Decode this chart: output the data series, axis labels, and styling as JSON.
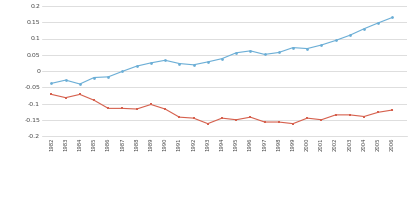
{
  "years": [
    1982,
    1983,
    1984,
    1985,
    1986,
    1987,
    1988,
    1989,
    1990,
    1991,
    1992,
    1993,
    1994,
    1995,
    1996,
    1997,
    1998,
    1999,
    2000,
    2001,
    2002,
    2003,
    2004,
    2005,
    2006
  ],
  "manufacturing": [
    -0.038,
    -0.028,
    -0.04,
    -0.02,
    -0.018,
    -0.001,
    0.015,
    0.025,
    0.033,
    0.023,
    0.019,
    0.028,
    0.038,
    0.056,
    0.062,
    0.051,
    0.057,
    0.072,
    0.069,
    0.08,
    0.094,
    0.11,
    0.13,
    0.148,
    0.165
  ],
  "non_manufacturing": [
    -0.072,
    -0.082,
    -0.072,
    -0.09,
    -0.115,
    -0.115,
    -0.117,
    -0.103,
    -0.117,
    -0.142,
    -0.145,
    -0.162,
    -0.145,
    -0.15,
    -0.142,
    -0.157,
    -0.157,
    -0.162,
    -0.145,
    -0.15,
    -0.135,
    -0.135,
    -0.14,
    -0.127,
    -0.12
  ],
  "mfg_color": "#6baed6",
  "non_mfg_color": "#d6604d",
  "ylim": [
    -0.2,
    0.2
  ],
  "yticks": [
    -0.2,
    -0.15,
    -0.1,
    -0.05,
    0,
    0.05,
    0.1,
    0.15,
    0.2
  ],
  "ytick_labels": [
    "-0.2",
    "-0.15",
    "-0.1",
    "-0.05",
    "0",
    "0.05",
    "0.1",
    "0.15",
    "0.2"
  ],
  "bg_color": "#ffffff",
  "grid_color": "#d0d0d0"
}
